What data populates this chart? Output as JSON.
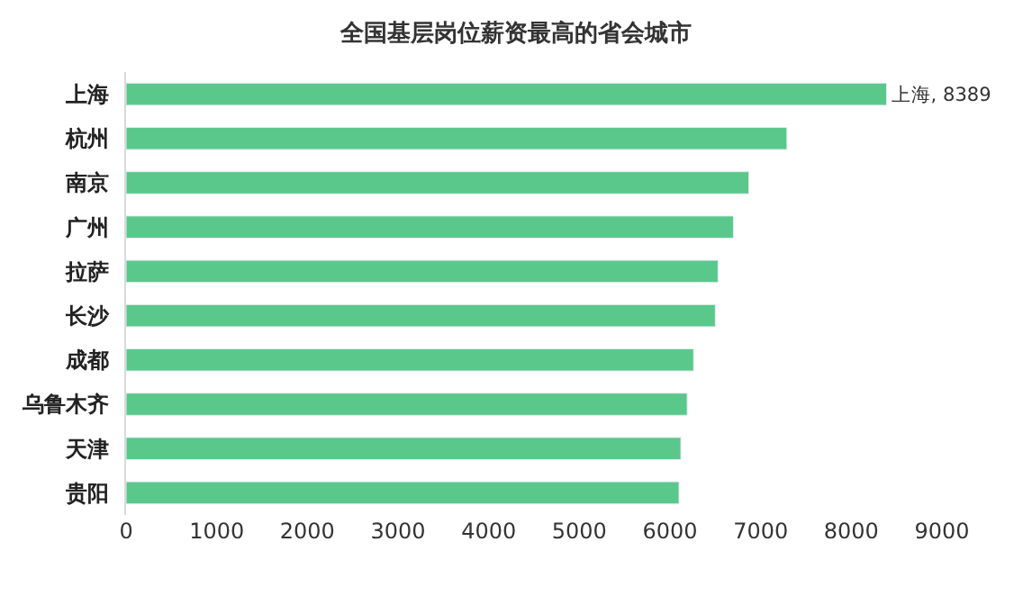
{
  "chart_data": {
    "type": "bar",
    "orientation": "horizontal",
    "title": "全国基层岗位薪资最高的省会城市",
    "categories": [
      "上海",
      "杭州",
      "南京",
      "广州",
      "拉萨",
      "长沙",
      "成都",
      "乌鲁木齐",
      "天津",
      "贵阳"
    ],
    "values": [
      8389,
      7290,
      6870,
      6700,
      6530,
      6500,
      6260,
      6190,
      6120,
      6100
    ],
    "value_labels": [
      "上海, 8389",
      null,
      null,
      null,
      null,
      null,
      null,
      null,
      null,
      null
    ],
    "color": "#5ac88a",
    "xlim": [
      0,
      9000
    ],
    "xticks": [
      0,
      1000,
      2000,
      3000,
      4000,
      5000,
      6000,
      7000,
      8000,
      9000
    ],
    "legend": false
  }
}
